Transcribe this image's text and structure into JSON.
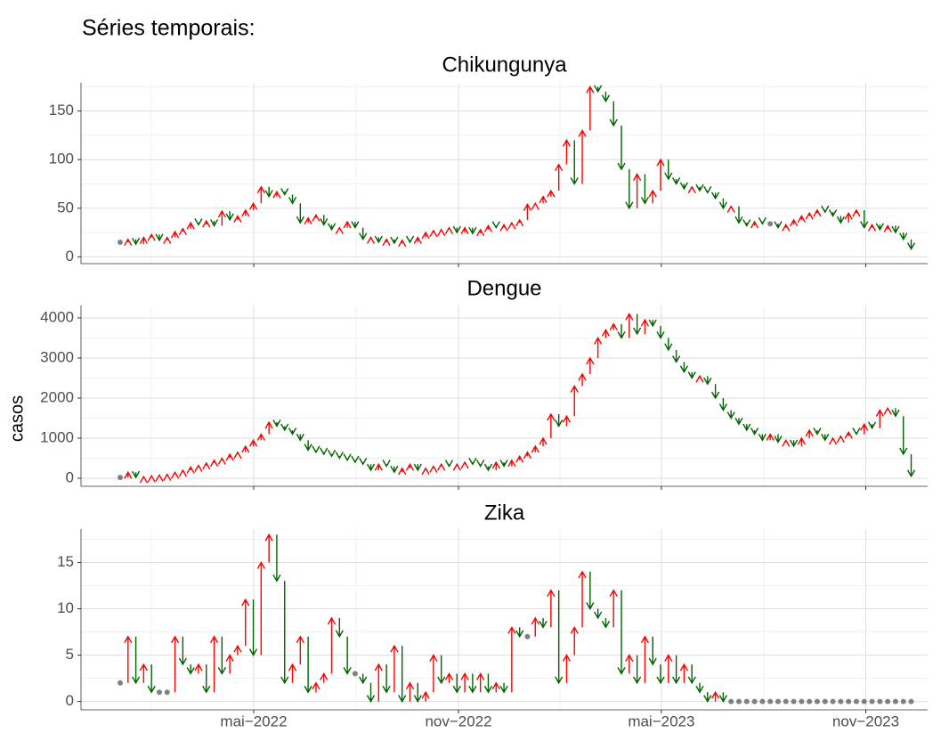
{
  "title": "Séries temporais:",
  "ylabel": "casos",
  "chart_data": [
    {
      "type": "arrow-line",
      "title": "Chikungunya",
      "up_color": "#ff0000",
      "down_color": "#006400",
      "flat_color": "#808080",
      "grid": true,
      "xlim": [
        -5,
        103.1
      ],
      "xticks": [
        17.05,
        43.2,
        69.1,
        95.2
      ],
      "ylim": [
        -7,
        179
      ],
      "yticks": [
        0,
        50,
        100,
        150
      ],
      "x": [
        0,
        1,
        2,
        3,
        4,
        5,
        6,
        7,
        8,
        9,
        10,
        11,
        12,
        13,
        14,
        15,
        16,
        17,
        18,
        19,
        20,
        21,
        22,
        23,
        24,
        25,
        26,
        27,
        28,
        29,
        30,
        31,
        32,
        33,
        34,
        35,
        36,
        37,
        38,
        39,
        40,
        41,
        42,
        43,
        44,
        45,
        46,
        47,
        48,
        49,
        50,
        51,
        52,
        53,
        54,
        55,
        56,
        57,
        58,
        59,
        60,
        61,
        62,
        63,
        64,
        65,
        66,
        67,
        68,
        69,
        70,
        71,
        72,
        73,
        74,
        75,
        76,
        77,
        78,
        79,
        80,
        81,
        82,
        83,
        84,
        85,
        86,
        87,
        88,
        89,
        90,
        91,
        92,
        93,
        94,
        95,
        96,
        97,
        98,
        99,
        100,
        101
      ],
      "values": [
        15,
        18,
        13,
        20,
        23,
        17,
        20,
        26,
        29,
        35,
        33,
        37,
        32,
        47,
        38,
        42,
        48,
        55,
        72,
        62,
        67,
        64,
        55,
        35,
        40,
        43,
        33,
        28,
        30,
        36,
        30,
        18,
        20,
        15,
        18,
        14,
        17,
        15,
        20,
        25,
        27,
        28,
        30,
        25,
        30,
        24,
        28,
        32,
        30,
        33,
        35,
        38,
        54,
        55,
        62,
        68,
        95,
        120,
        75,
        130,
        175,
        170,
        160,
        135,
        90,
        50,
        85,
        55,
        68,
        100,
        80,
        75,
        70,
        72,
        68,
        66,
        60,
        50,
        52,
        35,
        32,
        36,
        34,
        34,
        30,
        33,
        38,
        42,
        45,
        48,
        46,
        42,
        35,
        45,
        48,
        30,
        33,
        28,
        32,
        25,
        18,
        8
      ]
    },
    {
      "type": "arrow-line",
      "title": "Dengue",
      "up_color": "#ff0000",
      "down_color": "#006400",
      "flat_color": "#808080",
      "grid": true,
      "xlim": [
        -5,
        103.1
      ],
      "xticks": [
        17.05,
        43.2,
        69.1,
        95.2
      ],
      "ylim": [
        -200,
        4310
      ],
      "yticks": [
        0,
        1000,
        2000,
        3000,
        4000
      ],
      "x": [
        0,
        1,
        2,
        3,
        4,
        5,
        6,
        7,
        8,
        9,
        10,
        11,
        12,
        13,
        14,
        15,
        16,
        17,
        18,
        19,
        20,
        21,
        22,
        23,
        24,
        25,
        26,
        27,
        28,
        29,
        30,
        31,
        32,
        33,
        34,
        35,
        36,
        37,
        38,
        39,
        40,
        41,
        42,
        43,
        44,
        45,
        46,
        47,
        48,
        49,
        50,
        51,
        52,
        53,
        54,
        55,
        56,
        57,
        58,
        59,
        60,
        61,
        62,
        63,
        64,
        65,
        66,
        67,
        68,
        69,
        70,
        71,
        72,
        73,
        74,
        75,
        76,
        77,
        78,
        79,
        80,
        81,
        82,
        83,
        84,
        85,
        86,
        87,
        88,
        89,
        90,
        91,
        92,
        93,
        94,
        95,
        96,
        97,
        98,
        99,
        100,
        101
      ],
      "values": [
        20,
        150,
        20,
        40,
        60,
        80,
        100,
        150,
        200,
        280,
        320,
        380,
        450,
        500,
        600,
        650,
        800,
        950,
        1100,
        1400,
        1300,
        1200,
        1100,
        950,
        700,
        650,
        600,
        550,
        500,
        450,
        400,
        350,
        200,
        350,
        300,
        150,
        250,
        350,
        200,
        250,
        300,
        350,
        300,
        350,
        400,
        350,
        300,
        200,
        400,
        300,
        450,
        550,
        650,
        800,
        1000,
        1600,
        1300,
        1550,
        2300,
        2600,
        3000,
        3500,
        3700,
        3850,
        3500,
        4100,
        3600,
        3950,
        3800,
        3500,
        3200,
        2900,
        2650,
        2500,
        2550,
        2350,
        2000,
        1700,
        1500,
        1350,
        1200,
        1100,
        950,
        1100,
        900,
        950,
        800,
        1000,
        1200,
        1100,
        950,
        1000,
        1050,
        1150,
        1100,
        1350,
        1250,
        1700,
        1750,
        1550,
        600,
        50
      ]
    },
    {
      "type": "arrow-line",
      "title": "Zika",
      "up_color": "#ff0000",
      "down_color": "#006400",
      "flat_color": "#808080",
      "grid": true,
      "xlim": [
        -5,
        103.1
      ],
      "xticks": [
        {
          "value": 17.05,
          "label": "mai−2022"
        },
        {
          "value": 43.2,
          "label": "nov−2022"
        },
        {
          "value": 69.1,
          "label": "mai−2023"
        },
        {
          "value": 95.2,
          "label": "nov−2023"
        }
      ],
      "ylim": [
        -0.9,
        18.6
      ],
      "yticks": [
        0,
        5,
        10,
        15
      ],
      "x": [
        0,
        1,
        2,
        3,
        4,
        5,
        6,
        7,
        8,
        9,
        10,
        11,
        12,
        13,
        14,
        15,
        16,
        17,
        18,
        19,
        20,
        21,
        22,
        23,
        24,
        25,
        26,
        27,
        28,
        29,
        30,
        31,
        32,
        33,
        34,
        35,
        36,
        37,
        38,
        39,
        40,
        41,
        42,
        43,
        44,
        45,
        46,
        47,
        48,
        49,
        50,
        51,
        52,
        53,
        54,
        55,
        56,
        57,
        58,
        59,
        60,
        61,
        62,
        63,
        64,
        65,
        66,
        67,
        68,
        69,
        70,
        71,
        72,
        73,
        74,
        75,
        76,
        77,
        78,
        79,
        80,
        81,
        82,
        83,
        84,
        85,
        86,
        87,
        88,
        89,
        90,
        91,
        92,
        93,
        94,
        95,
        96,
        97,
        98,
        99,
        100,
        101
      ],
      "values": [
        2,
        7,
        2,
        4,
        1,
        1,
        1,
        7,
        4,
        3,
        4,
        1,
        7,
        3,
        5,
        6,
        11,
        5,
        15,
        18,
        13,
        2,
        4,
        7,
        1,
        2,
        3,
        9,
        7,
        3,
        3,
        2,
        0,
        4,
        1,
        6,
        0,
        2,
        0,
        1,
        5,
        2,
        3,
        1,
        3,
        1,
        3,
        1,
        2,
        1,
        8,
        7,
        7,
        9,
        8,
        12,
        2,
        5,
        8,
        14,
        10,
        9,
        8,
        12,
        3,
        5,
        2,
        7,
        4,
        2,
        5,
        2,
        4,
        2,
        1,
        0,
        1,
        0,
        0,
        0,
        0,
        0,
        0,
        0,
        0,
        0,
        0,
        0,
        0,
        0,
        0,
        0,
        0,
        0,
        0,
        0,
        0,
        0,
        0,
        0,
        0,
        0
      ]
    }
  ]
}
